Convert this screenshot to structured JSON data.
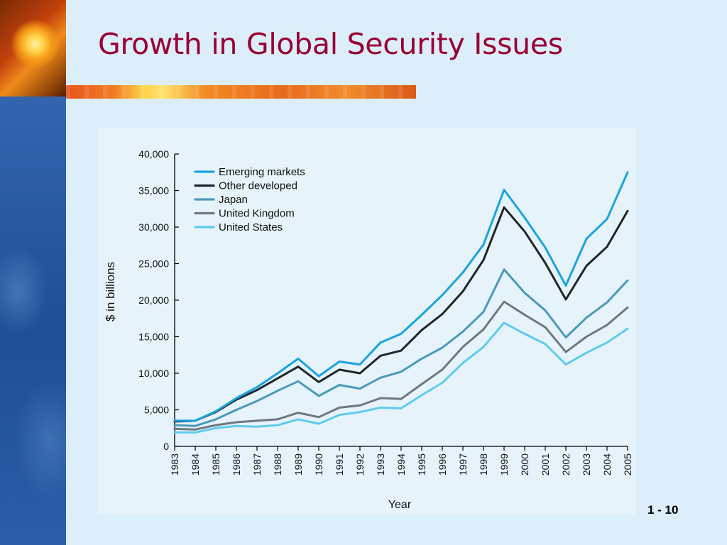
{
  "slide": {
    "title": "Growth in Global Security Issues",
    "page_number": "1 - 10"
  },
  "theme": {
    "title_color": "#990033",
    "axis_color": "#000000"
  },
  "chart_data": {
    "type": "line",
    "title": "",
    "xlabel": "Year",
    "ylabel": "$ in billions",
    "ylim": [
      0,
      40000
    ],
    "yticks": [
      0,
      5000,
      10000,
      15000,
      20000,
      25000,
      30000,
      35000,
      40000
    ],
    "ytick_labels": [
      "0",
      "5,000",
      "10,000",
      "15,000",
      "20,000",
      "25,000",
      "30,000",
      "35,000",
      "40,000"
    ],
    "grid": false,
    "legend_position": "top-left",
    "x": [
      "1983",
      "1984",
      "1985",
      "1986",
      "1987",
      "1988",
      "1989",
      "1990",
      "1991",
      "1992",
      "1993",
      "1994",
      "1995",
      "1996",
      "1997",
      "1998",
      "1999",
      "2000",
      "2001",
      "2002",
      "2003",
      "2004",
      "2005"
    ],
    "series": [
      {
        "name": "Emerging markets",
        "color": "#1aa3e0",
        "values": [
          3500,
          3500,
          4800,
          6600,
          8100,
          10000,
          12000,
          9600,
          11600,
          11200,
          14200,
          15400,
          18000,
          20700,
          23800,
          27600,
          35100,
          31300,
          27200,
          22000,
          28400,
          31100,
          37500
        ]
      },
      {
        "name": "Other developed",
        "color": "#1f2628",
        "values": [
          3400,
          3500,
          4700,
          6400,
          7700,
          9300,
          10900,
          8800,
          10500,
          10000,
          12400,
          13100,
          15900,
          18100,
          21200,
          25500,
          32700,
          29400,
          25100,
          20100,
          24700,
          27300,
          32200
        ]
      },
      {
        "name": "Japan",
        "color": "#4a9ab8",
        "values": [
          2900,
          2800,
          3700,
          5000,
          6200,
          7600,
          8900,
          6900,
          8400,
          7900,
          9400,
          10200,
          12000,
          13500,
          15700,
          18400,
          24200,
          21000,
          18600,
          14900,
          17600,
          19700,
          22700
        ]
      },
      {
        "name": "United Kingdom",
        "color": "#6e7880",
        "values": [
          2400,
          2300,
          2900,
          3300,
          3500,
          3700,
          4600,
          4000,
          5300,
          5600,
          6600,
          6500,
          8500,
          10500,
          13600,
          16000,
          19800,
          18000,
          16300,
          12900,
          15000,
          16600,
          19000
        ]
      },
      {
        "name": "United States",
        "color": "#5fcbec",
        "values": [
          1900,
          1900,
          2500,
          2800,
          2700,
          2900,
          3700,
          3100,
          4300,
          4700,
          5300,
          5200,
          7000,
          8700,
          11400,
          13600,
          16900,
          15400,
          14000,
          11200,
          12800,
          14200,
          16100
        ]
      }
    ]
  }
}
